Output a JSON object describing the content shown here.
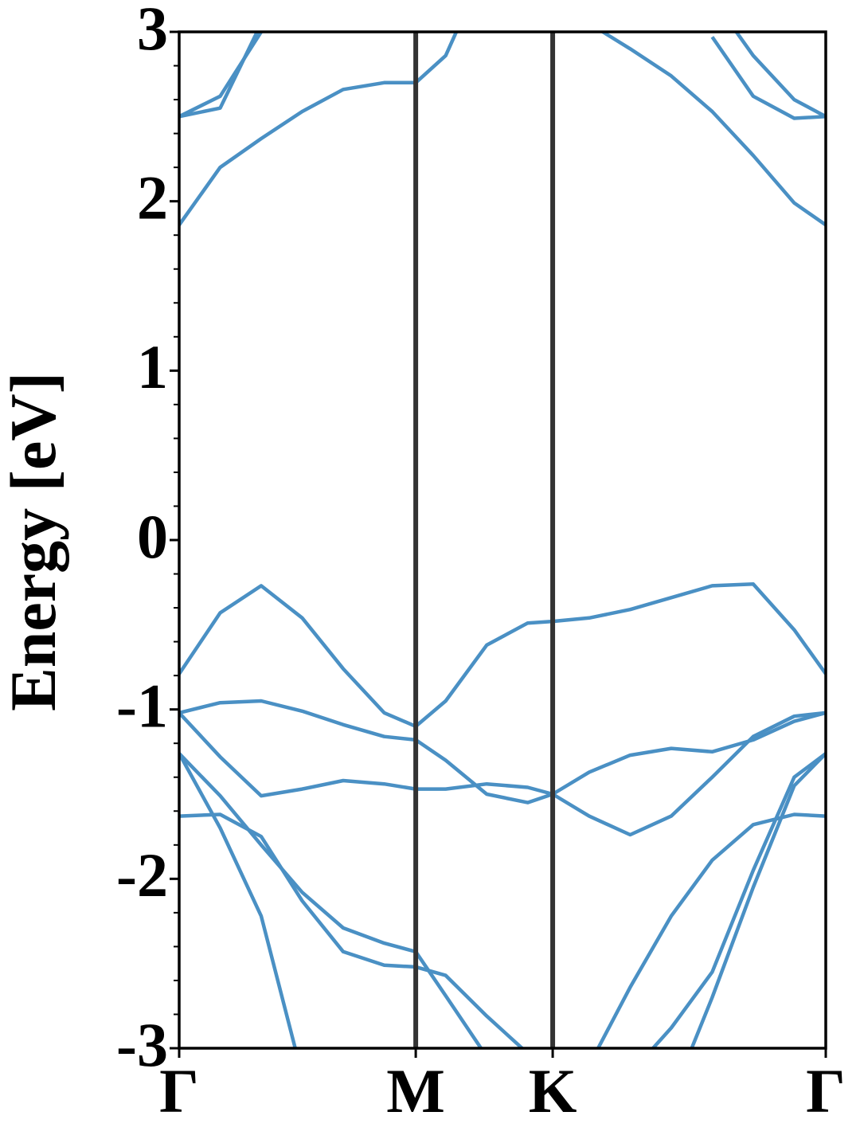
{
  "chart_data": {
    "type": "line",
    "ylabel": "Energy [eV]",
    "color": "#4a90c4",
    "x": [
      0,
      0.1,
      0.2,
      0.3,
      0.4,
      0.5,
      0.577,
      0.65,
      0.75,
      0.85,
      0.911,
      1.0,
      1.1,
      1.2,
      1.3,
      1.4,
      1.5,
      1.577
    ],
    "xlim": [
      0,
      1.577
    ],
    "xticks": [
      {
        "value": 0,
        "label": "Γ"
      },
      {
        "value": 0.577,
        "label": "M"
      },
      {
        "value": 0.911,
        "label": "K"
      },
      {
        "value": 1.577,
        "label": "Γ"
      }
    ],
    "symmetry_lines": true,
    "ylim": [
      -3,
      3
    ],
    "yticks": [
      -3,
      -2,
      -1,
      0,
      1,
      2,
      3
    ],
    "yticks_minor": [
      -2.8,
      -2.6,
      -2.4,
      -2.2,
      -1.8,
      -1.6,
      -1.4,
      -1.2,
      -0.8,
      -0.6,
      -0.4,
      -0.2,
      0.2,
      0.4,
      0.6,
      0.8,
      1.2,
      1.4,
      1.6,
      1.8,
      2.2,
      2.4,
      2.6,
      2.8
    ],
    "series": [
      {
        "values": [
          -0.79,
          -0.43,
          -0.27,
          -0.46,
          -0.76,
          -1.02,
          -1.1,
          -0.95,
          -0.62,
          -0.49,
          -0.48,
          -0.46,
          -0.41,
          -0.34,
          -0.27,
          -0.26,
          -0.53,
          -0.79
        ]
      },
      {
        "values": [
          -1.02,
          -0.96,
          -0.95,
          -1.01,
          -1.09,
          -1.16,
          -1.18,
          -1.3,
          -1.5,
          -1.55,
          -1.5,
          -1.37,
          -1.27,
          -1.23,
          -1.25,
          -1.18,
          -1.07,
          -1.02
        ]
      },
      {
        "values": [
          -1.02,
          -1.28,
          -1.51,
          -1.47,
          -1.42,
          -1.44,
          -1.47,
          -1.47,
          -1.44,
          -1.46,
          -1.5,
          -1.63,
          -1.74,
          -1.63,
          -1.4,
          -1.16,
          -1.04,
          -1.02
        ]
      },
      {
        "values": [
          -1.26,
          -1.51,
          -1.8,
          -2.08,
          -2.29,
          -2.38,
          -2.43,
          -2.69,
          -3.05,
          null,
          null,
          null,
          null,
          -3.3,
          -2.7,
          -2.05,
          -1.45,
          -1.26
        ]
      },
      {
        "values": [
          -1.63,
          -1.62,
          -1.75,
          -2.13,
          -2.43,
          -2.51,
          -2.52,
          -2.57,
          -2.81,
          -3.03,
          null,
          -3.1,
          -2.64,
          -2.22,
          -1.89,
          -1.68,
          -1.62,
          -1.63
        ]
      },
      {
        "values": [
          -1.26,
          -1.7,
          -2.22,
          -3.16,
          null,
          null,
          null,
          null,
          null,
          null,
          null,
          null,
          -3.15,
          -2.88,
          -2.55,
          -1.95,
          -1.4,
          -1.26
        ]
      },
      {
        "values": [
          1.86,
          2.2,
          2.37,
          2.53,
          2.66,
          2.7,
          2.7,
          2.86,
          3.4,
          null,
          null,
          3.05,
          2.9,
          2.74,
          2.53,
          2.27,
          1.99,
          1.86
        ]
      },
      {
        "values": [
          2.5,
          2.62,
          3.0,
          3.3,
          null,
          null,
          null,
          null,
          null,
          null,
          null,
          null,
          null,
          null,
          3.2,
          2.86,
          2.6,
          2.5
        ]
      },
      {
        "values": [
          2.5,
          2.55,
          3.05,
          3.4,
          null,
          null,
          null,
          null,
          null,
          null,
          null,
          null,
          null,
          null,
          2.97,
          2.62,
          2.49,
          2.5
        ]
      }
    ]
  }
}
